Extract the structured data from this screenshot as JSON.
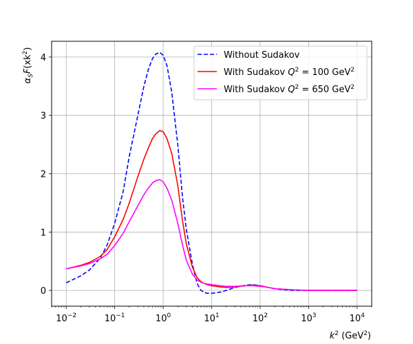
{
  "chart_data": {
    "type": "line",
    "x_scale": "log",
    "xlabel_base": "k",
    "xlabel_sup": "2",
    "xlabel_unit_open": " (GeV",
    "xlabel_unit_sup": "2",
    "xlabel_unit_close": ")",
    "ylabel_alpha": "α",
    "ylabel_sub": "S",
    "ylabel_f": "F",
    "ylabel_arg_open": "(xk",
    "ylabel_arg_sup": "2",
    "ylabel_arg_close": ")",
    "xlim": [
      0.005,
      20000
    ],
    "ylim": [
      -0.27,
      4.27
    ],
    "grid": true,
    "legend_placement": "top-right",
    "x_ticks": [
      {
        "base": "10",
        "exp": "−2",
        "value": 0.01
      },
      {
        "base": "10",
        "exp": "−1",
        "value": 0.1
      },
      {
        "base": "10",
        "exp": "0",
        "value": 1
      },
      {
        "base": "10",
        "exp": "1",
        "value": 10
      },
      {
        "base": "10",
        "exp": "2",
        "value": 100
      },
      {
        "base": "10",
        "exp": "3",
        "value": 1000
      },
      {
        "base": "10",
        "exp": "4",
        "value": 10000
      }
    ],
    "y_ticks": [
      {
        "label": "0",
        "value": 0
      },
      {
        "label": "1",
        "value": 1
      },
      {
        "label": "2",
        "value": 2
      },
      {
        "label": "3",
        "value": 3
      },
      {
        "label": "4",
        "value": 4
      }
    ],
    "x": [
      0.01,
      0.02,
      0.03,
      0.05,
      0.07,
      0.1,
      0.15,
      0.2,
      0.3,
      0.4,
      0.5,
      0.6,
      0.7,
      0.85,
      1.0,
      1.2,
      1.5,
      2.0,
      2.5,
      3.0,
      4.0,
      5.0,
      6.0,
      7.0,
      8.0,
      10,
      15,
      20,
      30,
      50,
      70,
      100,
      150,
      200,
      300,
      500,
      1000,
      2000,
      5000,
      10000
    ],
    "series": [
      {
        "name_text": "Without Sudakov",
        "name_q": "",
        "name_sup": "",
        "name_tail": "",
        "name_unit_sup": "",
        "color": "#0000ff",
        "dash": "6,3",
        "values": [
          0.13,
          0.25,
          0.35,
          0.55,
          0.78,
          1.15,
          1.7,
          2.3,
          3.0,
          3.5,
          3.8,
          3.97,
          4.05,
          4.08,
          4.03,
          3.85,
          3.4,
          2.5,
          1.6,
          1.05,
          0.45,
          0.12,
          0.0,
          -0.03,
          -0.05,
          -0.05,
          -0.03,
          0.0,
          0.05,
          0.09,
          0.1,
          0.08,
          0.05,
          0.03,
          0.01,
          0.0,
          0.0,
          0.0,
          0.0,
          0.0
        ]
      },
      {
        "name_text": "With Sudakov ",
        "name_q": "Q",
        "name_sup": "2",
        "name_tail": " = 100 GeV",
        "name_unit_sup": "2",
        "color": "#ff0000",
        "dash": "",
        "values": [
          0.37,
          0.43,
          0.48,
          0.58,
          0.7,
          0.92,
          1.22,
          1.5,
          1.95,
          2.25,
          2.45,
          2.6,
          2.68,
          2.74,
          2.72,
          2.6,
          2.35,
          1.8,
          1.2,
          0.8,
          0.4,
          0.22,
          0.15,
          0.12,
          0.1,
          0.08,
          0.06,
          0.05,
          0.06,
          0.08,
          0.09,
          0.08,
          0.05,
          0.03,
          0.02,
          0.01,
          0.0,
          0.0,
          0.0,
          0.0
        ]
      },
      {
        "name_text": "With Sudakov ",
        "name_q": "Q",
        "name_sup": "2",
        "name_tail": " = 650 GeV",
        "name_unit_sup": "2",
        "color": "#ff00ff",
        "dash": "",
        "values": [
          0.37,
          0.42,
          0.46,
          0.54,
          0.62,
          0.77,
          0.98,
          1.18,
          1.45,
          1.64,
          1.76,
          1.84,
          1.88,
          1.9,
          1.86,
          1.75,
          1.55,
          1.15,
          0.78,
          0.52,
          0.28,
          0.18,
          0.14,
          0.12,
          0.11,
          0.1,
          0.08,
          0.07,
          0.07,
          0.08,
          0.08,
          0.07,
          0.05,
          0.03,
          0.02,
          0.01,
          0.0,
          0.0,
          0.0,
          0.0
        ]
      }
    ]
  }
}
